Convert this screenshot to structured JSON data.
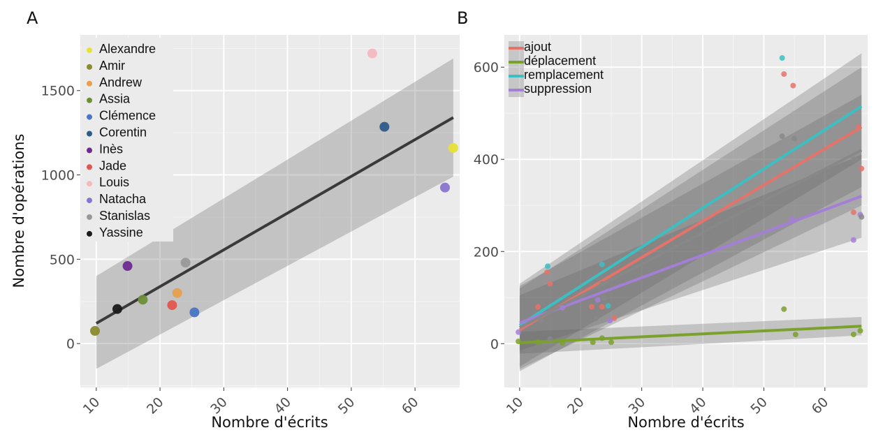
{
  "chart_data": [
    {
      "panel": "A",
      "type": "scatter",
      "xlabel": "Nombre d'écrits",
      "ylabel": "Nombre d'opérations",
      "xlim": [
        7.5,
        67
      ],
      "ylim": [
        -260,
        1830
      ],
      "xticks": [
        10,
        20,
        30,
        40,
        50,
        60
      ],
      "yticks": [
        0,
        500,
        1000,
        1500
      ],
      "grid": true,
      "legend_position": "top-left",
      "series": [
        {
          "name": "Alexandre",
          "color": "#e6e238",
          "points": [
            [
              66,
              1160
            ]
          ]
        },
        {
          "name": "Amir",
          "color": "#8a8a2e",
          "points": [
            [
              9.8,
              75
            ]
          ]
        },
        {
          "name": "Andrew",
          "color": "#e8a04d",
          "points": [
            [
              22.7,
              300
            ]
          ]
        },
        {
          "name": "Assia",
          "color": "#6b8f3a",
          "points": [
            [
              17.3,
              260
            ]
          ]
        },
        {
          "name": "Clémence",
          "color": "#4a74c4",
          "points": [
            [
              25.4,
              185
            ]
          ]
        },
        {
          "name": "Corentin",
          "color": "#2d5b8a",
          "points": [
            [
              55.2,
              1285
            ]
          ]
        },
        {
          "name": "Inès",
          "color": "#6e2a8e",
          "points": [
            [
              14.9,
              460
            ]
          ]
        },
        {
          "name": "Jade",
          "color": "#e0574f",
          "points": [
            [
              21.9,
              228
            ]
          ]
        },
        {
          "name": "Louis",
          "color": "#f4b8c0",
          "points": [
            [
              53.3,
              1720
            ]
          ]
        },
        {
          "name": "Natacha",
          "color": "#8a74cc",
          "points": [
            [
              64.7,
              925
            ]
          ]
        },
        {
          "name": "Stanislas",
          "color": "#999999",
          "points": [
            [
              24,
              480
            ]
          ]
        },
        {
          "name": "Yassine",
          "color": "#1a1a1a",
          "points": [
            [
              13.3,
              205
            ]
          ]
        }
      ],
      "fit": {
        "color": "#3a3a3a",
        "x": [
          10,
          66
        ],
        "y": [
          120,
          1340
        ],
        "ci_lower": [
          -150,
          990
        ],
        "ci_upper": [
          400,
          1690
        ]
      }
    },
    {
      "panel": "B",
      "type": "scatter",
      "xlabel": "Nombre d'écrits",
      "ylabel": "",
      "xlim": [
        7.5,
        67
      ],
      "ylim": [
        -95,
        670
      ],
      "xticks": [
        10,
        20,
        30,
        40,
        50,
        60
      ],
      "yticks": [
        0,
        200,
        400,
        600
      ],
      "grid": true,
      "legend_position": "top-left",
      "series": [
        {
          "name": "ajout",
          "color": "#e5736a",
          "points": [
            [
              13,
              80
            ],
            [
              14.5,
              155
            ],
            [
              15,
              130
            ],
            [
              21.8,
              80
            ],
            [
              23.5,
              80
            ],
            [
              25.5,
              55
            ],
            [
              53.3,
              585
            ],
            [
              54.8,
              560
            ],
            [
              65.5,
              470
            ],
            [
              66,
              380
            ],
            [
              64.7,
              285
            ]
          ],
          "fit": {
            "x": [
              10,
              66
            ],
            "y": [
              30,
              470
            ],
            "ci_lower": [
              -60,
              340
            ],
            "ci_upper": [
              120,
              600
            ]
          }
        },
        {
          "name": "déplacement",
          "color": "#7aa12b",
          "points": [
            [
              9.8,
              5
            ],
            [
              13,
              3
            ],
            [
              17,
              2
            ],
            [
              22,
              3
            ],
            [
              23.5,
              12
            ],
            [
              25,
              3
            ],
            [
              53.3,
              75
            ],
            [
              55.2,
              20
            ],
            [
              64.7,
              20
            ],
            [
              65.8,
              28
            ]
          ],
          "fit": {
            "x": [
              10,
              66
            ],
            "y": [
              2,
              38
            ],
            "ci_lower": [
              -22,
              18
            ],
            "ci_upper": [
              26,
              58
            ]
          }
        },
        {
          "name": "remplacement",
          "color": "#3cbfc2",
          "points": [
            [
              14.6,
              168
            ],
            [
              23.5,
              172
            ],
            [
              24.5,
              82
            ],
            [
              53,
              620
            ]
          ],
          "fit": {
            "x": [
              10,
              66
            ],
            "y": [
              40,
              515
            ],
            "ci_lower": [
              -50,
              400
            ],
            "ci_upper": [
              130,
              630
            ]
          }
        },
        {
          "name": "suppression",
          "color": "#a37fd6",
          "points": [
            [
              9.8,
              25
            ],
            [
              17,
              78
            ],
            [
              22.8,
              95
            ],
            [
              24.8,
              50
            ],
            [
              54.6,
              270
            ],
            [
              65.8,
              280
            ],
            [
              64.7,
              225
            ]
          ],
          "fit": {
            "x": [
              10,
              66
            ],
            "y": [
              45,
              320
            ],
            "ci_lower": [
              -15,
              230
            ],
            "ci_upper": [
              105,
              410
            ]
          }
        },
        {
          "name": "",
          "color": "#888888",
          "points": [
            [
              13.5,
              50
            ],
            [
              15,
              10
            ],
            [
              22.5,
              55
            ],
            [
              23.5,
              130
            ],
            [
              23.8,
              100
            ],
            [
              53,
              450
            ],
            [
              55,
              445
            ],
            [
              64.7,
              400
            ],
            [
              66,
              275
            ]
          ],
          "fit": {
            "x": [
              10,
              66
            ],
            "y": [
              35,
              420
            ],
            "ci_lower": [
              -55,
              300
            ],
            "ci_upper": [
              125,
              540
            ]
          }
        }
      ]
    }
  ]
}
